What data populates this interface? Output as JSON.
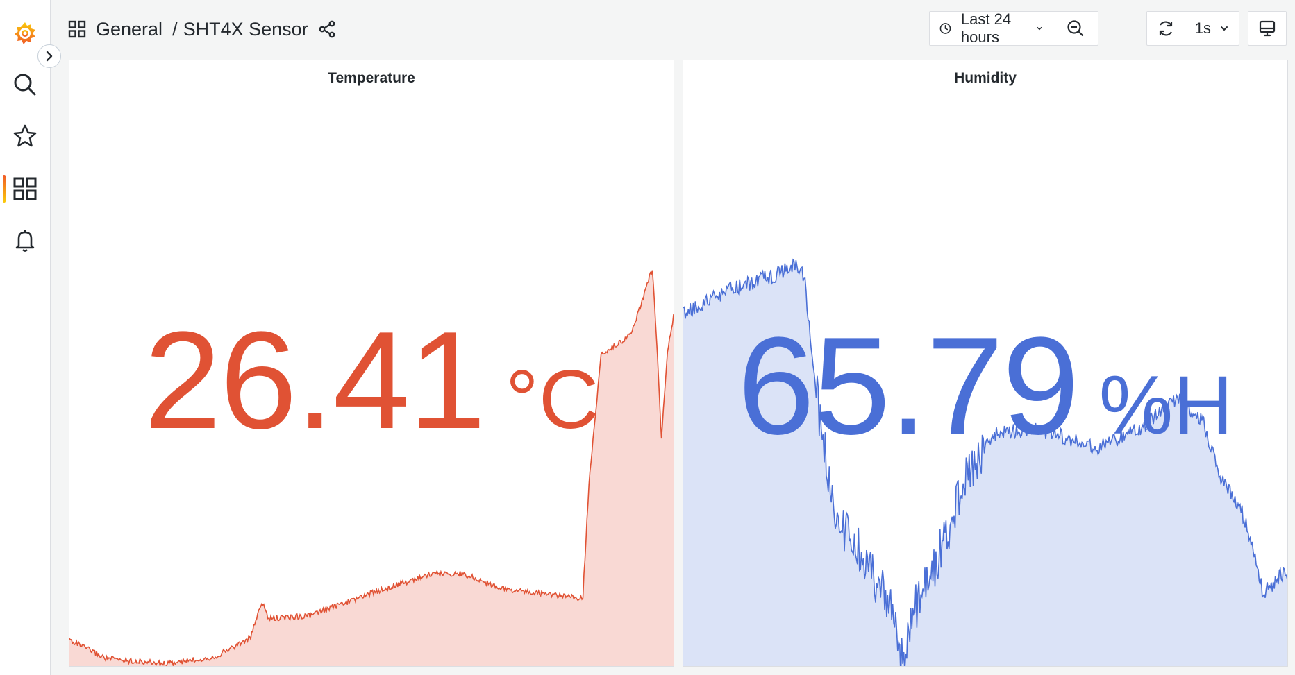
{
  "sidebar": {
    "items": [
      {
        "icon": "grafana-logo-icon"
      },
      {
        "icon": "search-icon"
      },
      {
        "icon": "star-icon"
      },
      {
        "icon": "dashboards-icon",
        "active": true
      },
      {
        "icon": "bell-icon"
      }
    ]
  },
  "header": {
    "folder": "General",
    "separator": "/",
    "dashboard": "SHT4X Sensor"
  },
  "toolbar": {
    "time_range": "Last 24 hours",
    "refresh_interval": "1s"
  },
  "panels": [
    {
      "title": "Temperature",
      "value": "26.41",
      "unit": "°C",
      "color": "#e05234",
      "fill": "#f9d9d4"
    },
    {
      "title": "Humidity",
      "value": "65.79",
      "unit": "%H",
      "color": "#4a6fd6",
      "fill": "#dbe3f7"
    }
  ]
}
